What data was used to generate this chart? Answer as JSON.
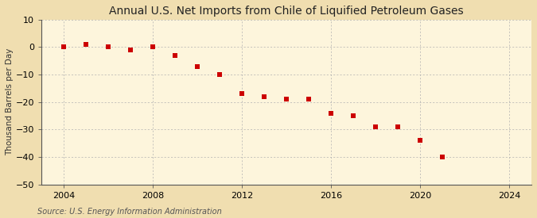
{
  "title": "Annual U.S. Net Imports from Chile of Liquified Petroleum Gases",
  "ylabel": "Thousand Barrels per Day",
  "source": "Source: U.S. Energy Information Administration",
  "background_color": "#f0deb0",
  "plot_background_color": "#fdf5dc",
  "years": [
    2004,
    2005,
    2006,
    2007,
    2008,
    2009,
    2010,
    2011,
    2012,
    2013,
    2014,
    2015,
    2016,
    2017,
    2018,
    2019,
    2020,
    2021
  ],
  "values": [
    0,
    1,
    0,
    -1,
    0,
    -3,
    -7,
    -10,
    -17,
    -18,
    -19,
    -19,
    -24,
    -25,
    -29,
    -29,
    -34,
    -40
  ],
  "xlim": [
    2003,
    2025
  ],
  "ylim": [
    -50,
    10
  ],
  "yticks": [
    10,
    0,
    -10,
    -20,
    -30,
    -40,
    -50
  ],
  "xticks": [
    2004,
    2008,
    2012,
    2016,
    2020,
    2024
  ],
  "marker_color": "#cc0000",
  "marker_size": 4,
  "grid_color": "#b0b0b0",
  "title_fontsize": 10,
  "label_fontsize": 7.5,
  "tick_fontsize": 8,
  "source_fontsize": 7
}
